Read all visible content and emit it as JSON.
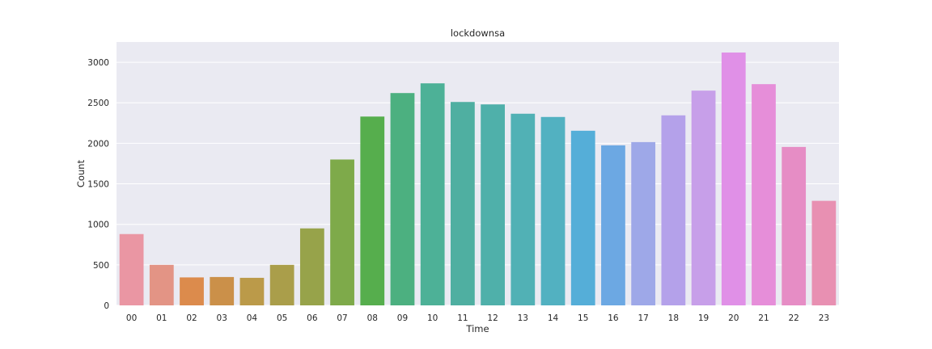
{
  "chart_data": {
    "type": "bar",
    "title": "lockdownsa",
    "xlabel": "Time",
    "ylabel": "Count",
    "categories": [
      "00",
      "01",
      "02",
      "03",
      "04",
      "05",
      "06",
      "07",
      "08",
      "09",
      "10",
      "11",
      "12",
      "13",
      "14",
      "15",
      "16",
      "17",
      "18",
      "19",
      "20",
      "21",
      "22",
      "23"
    ],
    "values": [
      880,
      500,
      345,
      350,
      340,
      500,
      950,
      1800,
      2330,
      2620,
      2740,
      2510,
      2480,
      2365,
      2325,
      2155,
      1975,
      2015,
      2345,
      2650,
      3120,
      2730,
      1955,
      1290
    ],
    "ylim": [
      0,
      3250
    ],
    "yticks": [
      0,
      500,
      1000,
      1500,
      2000,
      2500,
      3000
    ],
    "grid": true,
    "legend": "none",
    "background_color": "#eaeaf2",
    "grid_color": "#ffffff",
    "bar_colors": [
      "#ea96a3",
      "#e39485",
      "#dc8b4c",
      "#cb9049",
      "#bb9a49",
      "#aa9e4a",
      "#97a34a",
      "#7eaa4a",
      "#56ae4d",
      "#4cb080",
      "#4db197",
      "#4fafa1",
      "#4fb0aa",
      "#51b1b5",
      "#52b1c1",
      "#55aed8",
      "#6ca8e3",
      "#9ea8e8",
      "#b4a1ea",
      "#c79fe9",
      "#e090e7",
      "#e68ed9",
      "#e68dc5",
      "#e890b2"
    ]
  }
}
